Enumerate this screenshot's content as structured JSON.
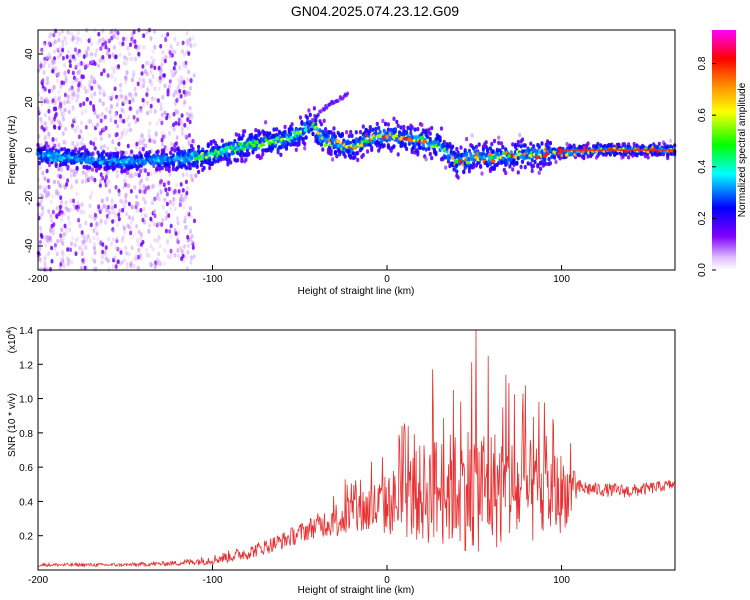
{
  "title": "GN04.2025.074.23.12.G09",
  "chart_data": [
    {
      "type": "heatmap",
      "name": "spectrogram",
      "xlabel": "Height of straight line (km)",
      "ylabel": "Frequency (Hz)",
      "xlim": [
        -200,
        165
      ],
      "ylim": [
        -50,
        50
      ],
      "x_ticks": [
        -200,
        -100,
        0,
        100
      ],
      "y_ticks": [
        -40,
        -20,
        0,
        20,
        40
      ],
      "colorbar": {
        "label": "Normalized spectral amplitude",
        "range": [
          0.0,
          0.93
        ],
        "ticks": [
          0.0,
          0.2,
          0.4,
          0.6,
          0.8
        ],
        "tick_labels": [
          "0.0",
          "0.2",
          "0.4",
          "0.6",
          "0.8"
        ],
        "colors": [
          "#ffffff",
          "#8000ff",
          "#0000ff",
          "#00ffff",
          "#00ff00",
          "#ffff00",
          "#ff8000",
          "#ff0000",
          "#ff00ff"
        ]
      },
      "ridge": {
        "x": [
          -200,
          -150,
          -120,
          -100,
          -80,
          -60,
          -50,
          -42,
          -38,
          -30,
          -20,
          -10,
          0,
          10,
          20,
          30,
          40,
          50,
          60,
          80,
          100,
          120,
          140,
          165
        ],
        "frequency": [
          -2,
          -5,
          -4,
          -2,
          2,
          4,
          7,
          11,
          5,
          3,
          1,
          5,
          6,
          5,
          4,
          2,
          -5,
          -3,
          -3,
          -2,
          -1,
          0,
          0,
          0
        ]
      },
      "arc": {
        "x": [
          -45,
          -40,
          -35,
          -30,
          -25,
          -22
        ],
        "frequency": [
          10,
          14,
          18,
          20,
          22,
          24
        ]
      }
    },
    {
      "type": "line",
      "name": "snr",
      "xlabel": "Height of straight line (km)",
      "ylabel": "SNR (10 * v/v)",
      "multiplier": "(x10",
      "multiplier_exp": "4",
      "multiplier_close": ")",
      "xlim": [
        -200,
        165
      ],
      "ylim": [
        0,
        1.4
      ],
      "x_ticks": [
        -200,
        -100,
        0,
        100
      ],
      "y_ticks": [
        0.2,
        0.4,
        0.6,
        0.8,
        1.0,
        1.2,
        1.4
      ],
      "color": "#e83030",
      "envelope": {
        "x": [
          -200,
          -150,
          -120,
          -100,
          -80,
          -60,
          -40,
          -25,
          -15,
          0,
          10,
          25,
          40,
          50,
          60,
          70,
          80,
          90,
          100,
          105,
          110,
          120,
          140,
          165
        ],
        "base": [
          0.03,
          0.03,
          0.04,
          0.06,
          0.1,
          0.17,
          0.26,
          0.31,
          0.34,
          0.38,
          0.42,
          0.46,
          0.47,
          0.49,
          0.48,
          0.46,
          0.45,
          0.44,
          0.45,
          0.46,
          0.48,
          0.47,
          0.46,
          0.5
        ],
        "amplitude": [
          0.01,
          0.01,
          0.015,
          0.03,
          0.04,
          0.05,
          0.07,
          0.12,
          0.15,
          0.18,
          0.24,
          0.32,
          0.34,
          0.4,
          0.36,
          0.34,
          0.32,
          0.28,
          0.24,
          0.16,
          0.05,
          0.04,
          0.04,
          0.03
        ]
      },
      "spikes": [
        {
          "x": 26,
          "y": 1.17
        },
        {
          "x": 38,
          "y": 1.05
        },
        {
          "x": 51,
          "y": 1.4
        },
        {
          "x": 58,
          "y": 1.25
        },
        {
          "x": 70,
          "y": 1.09
        },
        {
          "x": 78,
          "y": 1.03
        },
        {
          "x": 87,
          "y": 0.98
        },
        {
          "x": 95,
          "y": 0.88
        }
      ]
    }
  ]
}
